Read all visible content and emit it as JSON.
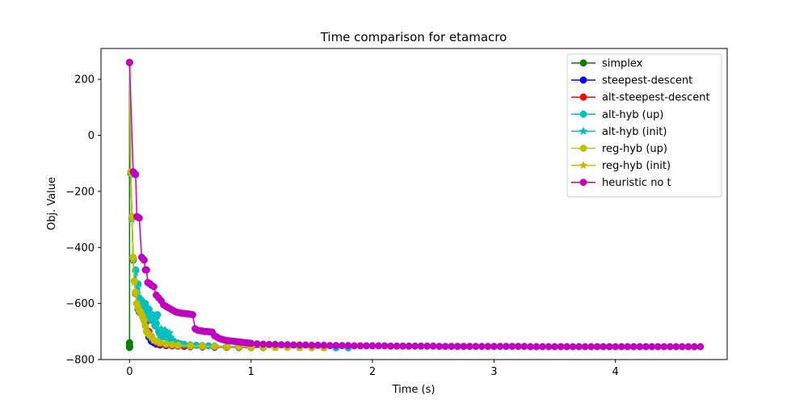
{
  "chart_data": {
    "type": "line",
    "title": "Time comparison for etamacro",
    "xlabel": "Time (s)",
    "ylabel": "Obj. Value",
    "xlim": [
      -0.235,
      4.92
    ],
    "ylim": [
      -800,
      310
    ],
    "xticks": [
      0,
      1,
      2,
      3,
      4
    ],
    "xtick_labels": [
      "0",
      "1",
      "2",
      "3",
      "4"
    ],
    "yticks": [
      -800,
      -600,
      -400,
      -200,
      0,
      200
    ],
    "ytick_labels": [
      "−800",
      "−600",
      "−400",
      "−200",
      "0",
      "200"
    ],
    "grid": false,
    "legend_position": "top-right",
    "series": [
      {
        "name": "simplex",
        "color": "#008000",
        "marker": "circle",
        "x": [
          0.0,
          0.0,
          0.0,
          0.0,
          0.0,
          0.0,
          0.0
        ],
        "y": [
          260,
          -740,
          -748,
          -752,
          -755,
          -756,
          -757
        ]
      },
      {
        "name": "steepest-descent",
        "color": "#0000ff",
        "marker": "circle",
        "x": [
          0.0,
          0.01,
          0.02,
          0.03,
          0.04,
          0.05,
          0.06,
          0.07,
          0.08,
          0.1,
          0.12,
          0.14,
          0.16,
          0.18,
          0.2,
          0.22,
          0.25,
          0.3,
          0.35,
          0.4,
          0.45,
          0.5,
          0.6,
          0.7,
          0.8,
          0.9,
          1.0,
          1.1
        ],
        "y": [
          260,
          -130,
          -290,
          -440,
          -520,
          -560,
          -600,
          -620,
          -630,
          -640,
          -660,
          -700,
          -720,
          -735,
          -740,
          -745,
          -748,
          -750,
          -751,
          -752,
          -753,
          -754,
          -755,
          -756,
          -756,
          -757,
          -757,
          -757
        ]
      },
      {
        "name": "alt-steepest-descent",
        "color": "#ff0000",
        "marker": "circle",
        "x": [
          0.0,
          0.01,
          0.02,
          0.03,
          0.04,
          0.05,
          0.06,
          0.08,
          0.1,
          0.12,
          0.14,
          0.16,
          0.18,
          0.2,
          0.22,
          0.25,
          0.3,
          0.35,
          0.4,
          0.45,
          0.5,
          0.6,
          0.7,
          0.8,
          0.9,
          1.0
        ],
        "y": [
          260,
          -135,
          -295,
          -445,
          -520,
          -565,
          -600,
          -625,
          -635,
          -645,
          -665,
          -700,
          -718,
          -732,
          -738,
          -744,
          -748,
          -750,
          -751,
          -752,
          -753,
          -754,
          -755,
          -756,
          -756,
          -757
        ]
      },
      {
        "name": "alt-hyb (up)",
        "color": "#00bfbf",
        "marker": "circle",
        "x": [
          0.0,
          0.01,
          0.02,
          0.03,
          0.04,
          0.05,
          0.06,
          0.07,
          0.08,
          0.09,
          0.1,
          0.11,
          0.12,
          0.13,
          0.14,
          0.15,
          0.16,
          0.17,
          0.18,
          0.19,
          0.2,
          0.21,
          0.22,
          0.23,
          0.24,
          0.25,
          0.26,
          0.27,
          0.28,
          0.3,
          0.32,
          0.34,
          0.36,
          0.38,
          0.4,
          0.42,
          0.45,
          0.5,
          0.55,
          0.6,
          0.65,
          0.7,
          0.8,
          0.9,
          1.0,
          1.1,
          1.2,
          1.3,
          1.4,
          1.5,
          1.6,
          1.7,
          1.8
        ],
        "y": [
          260,
          -130,
          -290,
          -440,
          -520,
          -480,
          -560,
          -530,
          -580,
          -600,
          -590,
          -610,
          -620,
          -600,
          -630,
          -640,
          -620,
          -650,
          -660,
          -640,
          -650,
          -680,
          -670,
          -640,
          -700,
          -710,
          -695,
          -720,
          -710,
          -720,
          -730,
          -725,
          -735,
          -740,
          -742,
          -744,
          -746,
          -748,
          -749,
          -750,
          -751,
          -752,
          -753,
          -754,
          -755,
          -755,
          -756,
          -756,
          -757,
          -757,
          -757,
          -758,
          -758
        ]
      },
      {
        "name": "alt-hyb (init)",
        "color": "#00bfbf",
        "marker": "star",
        "x": [
          0.0,
          0.01,
          0.02,
          0.03,
          0.04,
          0.05,
          0.06,
          0.07,
          0.08,
          0.09,
          0.1,
          0.11,
          0.12,
          0.13,
          0.14,
          0.15,
          0.16,
          0.17,
          0.18,
          0.19,
          0.2,
          0.21,
          0.22,
          0.23,
          0.24,
          0.25,
          0.26,
          0.27,
          0.28,
          0.29,
          0.3,
          0.31,
          0.32,
          0.33,
          0.34,
          0.35,
          0.36,
          0.38,
          0.4,
          0.45,
          0.5,
          0.6,
          0.7,
          0.8,
          0.9,
          1.0,
          1.2,
          1.4,
          1.6,
          1.8
        ],
        "y": [
          260,
          -140,
          -300,
          -445,
          -525,
          -490,
          -565,
          -540,
          -585,
          -595,
          -600,
          -615,
          -625,
          -610,
          -635,
          -645,
          -625,
          -655,
          -660,
          -645,
          -655,
          -680,
          -675,
          -645,
          -700,
          -715,
          -690,
          -720,
          -705,
          -695,
          -700,
          -720,
          -715,
          -705,
          -720,
          -730,
          -735,
          -738,
          -742,
          -746,
          -748,
          -751,
          -752,
          -753,
          -754,
          -755,
          -756,
          -757,
          -757,
          -758
        ]
      },
      {
        "name": "reg-hyb (up)",
        "color": "#bfbf00",
        "marker": "circle",
        "x": [
          0.0,
          0.01,
          0.02,
          0.03,
          0.04,
          0.05,
          0.06,
          0.07,
          0.08,
          0.09,
          0.1,
          0.11,
          0.12,
          0.13,
          0.14,
          0.15,
          0.16,
          0.17,
          0.18,
          0.2,
          0.22,
          0.25,
          0.3,
          0.35,
          0.4,
          0.5,
          0.6,
          0.7,
          0.8,
          0.9,
          1.0,
          1.1,
          1.2,
          1.3,
          1.4,
          1.5,
          1.6
        ],
        "y": [
          260,
          -130,
          -290,
          -435,
          -520,
          -560,
          -600,
          -615,
          -625,
          -630,
          -640,
          -650,
          -660,
          -680,
          -700,
          -705,
          -710,
          -715,
          -720,
          -730,
          -735,
          -740,
          -744,
          -747,
          -749,
          -751,
          -752,
          -753,
          -754,
          -755,
          -756,
          -756,
          -757,
          -757,
          -757,
          -758,
          -758
        ]
      },
      {
        "name": "reg-hyb (init)",
        "color": "#bfbf00",
        "marker": "star",
        "x": [
          0.0,
          0.01,
          0.02,
          0.03,
          0.04,
          0.05,
          0.06,
          0.07,
          0.08,
          0.1,
          0.12,
          0.14,
          0.16,
          0.18,
          0.2,
          0.25,
          0.3,
          0.4,
          0.5,
          0.6,
          0.8,
          1.0,
          1.2,
          1.4,
          1.6
        ],
        "y": [
          260,
          -135,
          -295,
          -440,
          -525,
          -565,
          -605,
          -620,
          -628,
          -642,
          -662,
          -700,
          -712,
          -722,
          -732,
          -741,
          -745,
          -750,
          -752,
          -753,
          -755,
          -756,
          -757,
          -757,
          -758
        ]
      },
      {
        "name": "heuristic no t",
        "color": "#bf00bf",
        "marker": "circle",
        "x": [
          0.0,
          0.03,
          0.04,
          0.05,
          0.06,
          0.07,
          0.08,
          0.1,
          0.11,
          0.12,
          0.13,
          0.14,
          0.15,
          0.16,
          0.17,
          0.18,
          0.2,
          0.22,
          0.24,
          0.26,
          0.28,
          0.3,
          0.32,
          0.34,
          0.36,
          0.38,
          0.4,
          0.42,
          0.44,
          0.46,
          0.48,
          0.5,
          0.52,
          0.54,
          0.56,
          0.58,
          0.6,
          0.62,
          0.64,
          0.66,
          0.68,
          0.7,
          0.72,
          0.74,
          0.76,
          0.78,
          0.8,
          0.82,
          0.84,
          0.86,
          0.88,
          0.9,
          0.92,
          0.94,
          0.96,
          0.98,
          1.0,
          1.05,
          1.1,
          1.15,
          1.2,
          1.25,
          1.3,
          1.35,
          1.4,
          1.45,
          1.5,
          1.55,
          1.6,
          1.65,
          1.7,
          1.75,
          1.8,
          1.85,
          1.9,
          1.95,
          2.0,
          2.05,
          2.1,
          2.15,
          2.2,
          2.25,
          2.3,
          2.35,
          2.4,
          2.45,
          2.5,
          2.55,
          2.6,
          2.65,
          2.7,
          2.75,
          2.8,
          2.85,
          2.9,
          2.95,
          3.0,
          3.05,
          3.1,
          3.15,
          3.2,
          3.25,
          3.3,
          3.35,
          3.4,
          3.45,
          3.5,
          3.55,
          3.6,
          3.65,
          3.7,
          3.75,
          3.8,
          3.85,
          3.9,
          3.95,
          4.0,
          4.05,
          4.1,
          4.15,
          4.2,
          4.25,
          4.3,
          4.35,
          4.4,
          4.45,
          4.5,
          4.55,
          4.6,
          4.65,
          4.7
        ],
        "y": [
          260,
          -130,
          -135,
          -140,
          -290,
          -292,
          -295,
          -435,
          -440,
          -445,
          -480,
          -480,
          -525,
          -528,
          -530,
          -535,
          -540,
          -570,
          -580,
          -590,
          -605,
          -610,
          -615,
          -620,
          -625,
          -630,
          -632,
          -634,
          -635,
          -636,
          -637,
          -638,
          -640,
          -690,
          -695,
          -697,
          -698,
          -700,
          -700,
          -701,
          -702,
          -715,
          -720,
          -725,
          -728,
          -730,
          -732,
          -733,
          -734,
          -735,
          -736,
          -737,
          -738,
          -739,
          -740,
          -741,
          -742,
          -744,
          -745,
          -746,
          -746,
          -747,
          -747,
          -748,
          -748,
          -748,
          -749,
          -749,
          -749,
          -750,
          -750,
          -750,
          -750,
          -751,
          -751,
          -751,
          -751,
          -751,
          -751,
          -752,
          -752,
          -752,
          -752,
          -752,
          -752,
          -752,
          -752,
          -753,
          -753,
          -753,
          -753,
          -753,
          -753,
          -753,
          -753,
          -753,
          -753,
          -753,
          -753,
          -753,
          -753,
          -753,
          -754,
          -754,
          -754,
          -754,
          -754,
          -754,
          -754,
          -754,
          -754,
          -754,
          -754,
          -754,
          -754,
          -754,
          -754,
          -754,
          -754,
          -754,
          -754,
          -754,
          -754,
          -754,
          -754,
          -754,
          -754,
          -754,
          -754,
          -754,
          -754
        ]
      }
    ]
  }
}
